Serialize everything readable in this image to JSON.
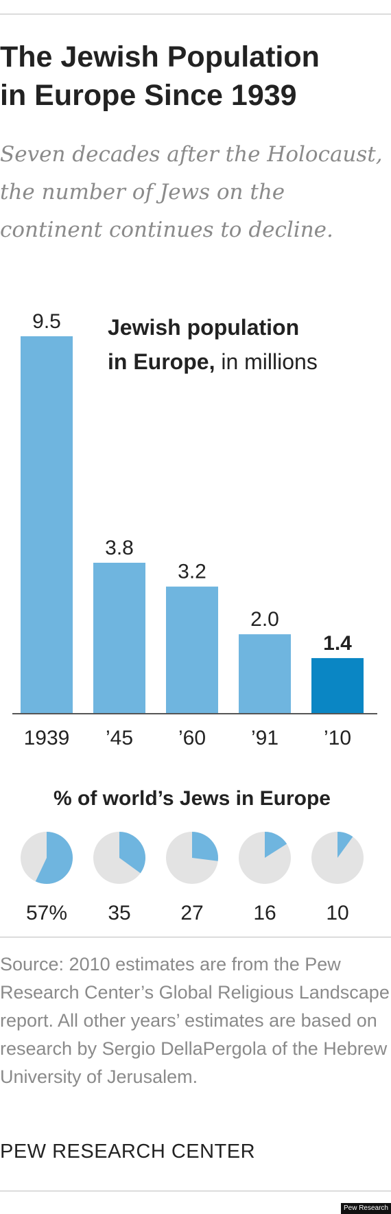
{
  "title_line1": "The Jewish Population",
  "title_line2": "in Europe Since 1939",
  "subtitle": "Seven decades after the Holocaust, the number of Jews on the continent continues to decline.",
  "chart_label_bold_1": "Jewish population",
  "chart_label_bold_2": "in Europe,",
  "chart_label_rest": " in millions",
  "chart_data": [
    {
      "type": "bar",
      "title": "Jewish population in Europe, in millions",
      "categories": [
        "1939",
        "’45",
        "’60",
        "’91",
        "’10"
      ],
      "values": [
        9.5,
        3.8,
        3.2,
        2.0,
        1.4
      ],
      "value_labels": [
        "9.5",
        "3.8",
        "3.2",
        "2.0",
        "1.4"
      ],
      "ylim": [
        0,
        9.5
      ],
      "grid": false,
      "colors": [
        "#6fb5df",
        "#6fb5df",
        "#6fb5df",
        "#6fb5df",
        "#0a86c4"
      ]
    },
    {
      "type": "pie",
      "title": "% of world’s Jews in Europe",
      "categories": [
        "1939",
        "’45",
        "’60",
        "’91",
        "’10"
      ],
      "values": [
        57,
        35,
        27,
        16,
        10
      ],
      "value_labels": [
        "57%",
        "35",
        "27",
        "16",
        "10"
      ],
      "colors": {
        "share": "#6fb5df",
        "rest": "#e3e3e3"
      }
    }
  ],
  "source": "Source: 2010 estimates are from the Pew Research Center’s Global Religious Landscape report. All other years’ estimates are based on research by Sergio DellaPergola of the Hebrew University of Jerusalem.",
  "credit": "PEW RESEARCH CENTER",
  "badge": "Pew Research"
}
